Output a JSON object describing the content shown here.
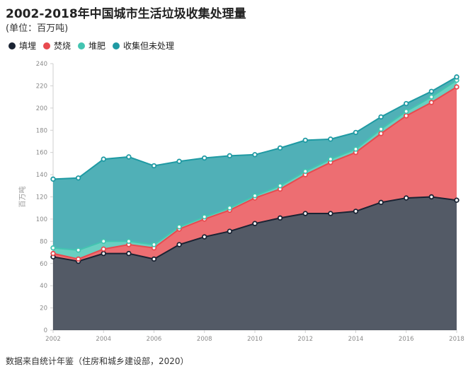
{
  "header": {
    "title": "2002-2018年中国城市生活垃圾收集处理量",
    "subtitle": "(单位：百万吨)"
  },
  "legend": [
    {
      "label": "填埋",
      "color": "#1a2333"
    },
    {
      "label": "焚烧",
      "color": "#e84a4f"
    },
    {
      "label": "堆肥",
      "color": "#43c4b1"
    },
    {
      "label": "收集但未处理",
      "color": "#1f9aa3"
    }
  ],
  "source": "数据来自统计年鉴（住房和城乡建设部，2020）",
  "chart_data": {
    "type": "area",
    "stacked": true,
    "ylabel": "百万吨",
    "ylim": [
      0,
      240
    ],
    "y_ticks": [
      0,
      20,
      40,
      60,
      80,
      100,
      120,
      140,
      160,
      180,
      200,
      220,
      240
    ],
    "x": [
      2002,
      2003,
      2004,
      2005,
      2006,
      2007,
      2008,
      2009,
      2010,
      2011,
      2012,
      2013,
      2014,
      2015,
      2016,
      2017,
      2018
    ],
    "x_ticks": [
      2002,
      2004,
      2006,
      2008,
      2010,
      2012,
      2014,
      2016,
      2018
    ],
    "grid": false,
    "series": [
      {
        "name": "填埋",
        "color": "#1a2333",
        "values": [
          66,
          62,
          69,
          69,
          64,
          77,
          84,
          89,
          96,
          101,
          105,
          105,
          107,
          115,
          119,
          120,
          117
        ]
      },
      {
        "name": "焚烧",
        "color": "#e84a4f",
        "values": [
          3,
          2,
          4,
          8,
          10,
          14,
          16,
          19,
          23,
          26,
          35,
          46,
          53,
          62,
          74,
          85,
          102
        ]
      },
      {
        "name": "堆肥",
        "color": "#43c4b1",
        "values": [
          5,
          8,
          7,
          3,
          3,
          2,
          2,
          2,
          2,
          3,
          3,
          3,
          3,
          4,
          4,
          5,
          6
        ]
      },
      {
        "name": "收集但未处理",
        "color": "#1f9aa3",
        "values": [
          62,
          65,
          74,
          76,
          71,
          59,
          53,
          47,
          37,
          34,
          28,
          18,
          15,
          11,
          7,
          5,
          3
        ]
      }
    ]
  }
}
